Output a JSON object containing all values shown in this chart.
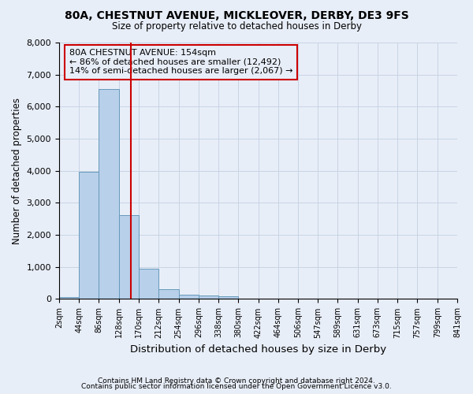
{
  "title": "80A, CHESTNUT AVENUE, MICKLEOVER, DERBY, DE3 9FS",
  "subtitle": "Size of property relative to detached houses in Derby",
  "xlabel": "Distribution of detached houses by size in Derby",
  "ylabel": "Number of detached properties",
  "footnote1": "Contains HM Land Registry data © Crown copyright and database right 2024.",
  "footnote2": "Contains public sector information licensed under the Open Government Licence v3.0.",
  "annotation_title": "80A CHESTNUT AVENUE: 154sqm",
  "annotation_line1": "← 86% of detached houses are smaller (12,492)",
  "annotation_line2": "14% of semi-detached houses are larger (2,067) →",
  "bar_edges": [
    2,
    44,
    86,
    128,
    170,
    212,
    254,
    296,
    338,
    380,
    422,
    464,
    506,
    547,
    589,
    631,
    673,
    715,
    757,
    799,
    841
  ],
  "bar_heights": [
    70,
    3970,
    6550,
    2620,
    950,
    310,
    130,
    110,
    90,
    0,
    0,
    0,
    0,
    0,
    0,
    0,
    0,
    0,
    0,
    0
  ],
  "bar_color": "#b8d0ea",
  "bar_edge_color": "#6699bb",
  "vline_color": "#cc0000",
  "vline_x": 154,
  "annotation_box_color": "#cc0000",
  "grid_color": "#c8d4e4",
  "background_color": "#e8eef8",
  "ylim": [
    0,
    8000
  ],
  "yticks": [
    0,
    1000,
    2000,
    3000,
    4000,
    5000,
    6000,
    7000,
    8000
  ]
}
